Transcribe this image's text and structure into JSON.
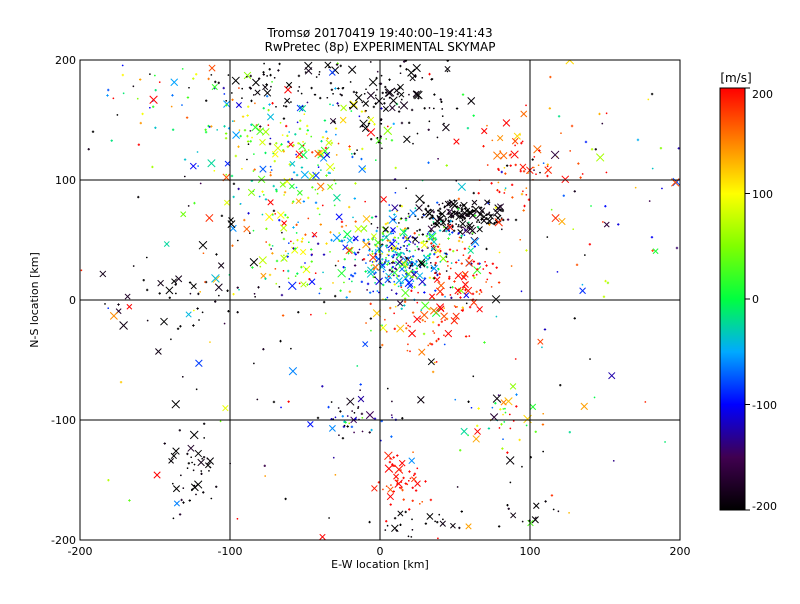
{
  "chart_data": {
    "type": "scatter",
    "title_line1": "Tromsø 20170419 19:40:00–19:41:43",
    "title_line2": "RwPretec (8p) EXPERIMENTAL SKYMAP",
    "xlabel": "E-W location [km]",
    "ylabel": "N-S location [km]",
    "xlim": [
      -200,
      200
    ],
    "ylim": [
      -200,
      200
    ],
    "x_ticks": [
      "-200",
      "-100",
      "0",
      "100",
      "200"
    ],
    "y_ticks": [
      "-200",
      "-100",
      "0",
      "100",
      "200"
    ],
    "grid": true,
    "colorbar": {
      "unit": "[m/s]",
      "range": [
        -200,
        200
      ],
      "ticks": [
        "200",
        "100",
        "0",
        "-100",
        "-200"
      ]
    },
    "clusters": [
      {
        "x": 52,
        "y": 70,
        "sx": 16,
        "sy": 7,
        "n": 180,
        "v": -200,
        "dv": 15
      },
      {
        "x": 10,
        "y": 35,
        "sx": 15,
        "sy": 15,
        "n": 260,
        "v": -70,
        "dv": 70
      },
      {
        "x": 30,
        "y": 45,
        "sx": 25,
        "sy": 25,
        "n": 160,
        "v": -20,
        "dv": 110
      },
      {
        "x": -60,
        "y": 130,
        "sx": 30,
        "sy": 25,
        "n": 200,
        "v": 20,
        "dv": 100
      },
      {
        "x": -40,
        "y": 180,
        "sx": 40,
        "sy": 12,
        "n": 110,
        "v": -200,
        "dv": 10
      },
      {
        "x": 10,
        "y": 160,
        "sx": 20,
        "sy": 20,
        "n": 70,
        "v": -200,
        "dv": 15
      },
      {
        "x": -45,
        "y": 50,
        "sx": 30,
        "sy": 30,
        "n": 140,
        "v": 60,
        "dv": 110
      },
      {
        "x": 55,
        "y": 20,
        "sx": 12,
        "sy": 15,
        "n": 70,
        "v": 200,
        "dv": 25
      },
      {
        "x": 90,
        "y": 110,
        "sx": 15,
        "sy": 25,
        "n": 70,
        "v": 180,
        "dv": 40
      },
      {
        "x": 30,
        "y": -20,
        "sx": 15,
        "sy": 15,
        "n": 60,
        "v": 180,
        "dv": 40
      },
      {
        "x": 15,
        "y": -150,
        "sx": 10,
        "sy": 12,
        "n": 50,
        "v": 200,
        "dv": 20
      },
      {
        "x": -125,
        "y": -145,
        "sx": 10,
        "sy": 15,
        "n": 45,
        "v": -200,
        "dv": 10
      },
      {
        "x": -15,
        "y": -100,
        "sx": 12,
        "sy": 10,
        "n": 45,
        "v": -130,
        "dv": 60
      },
      {
        "x": 80,
        "y": -100,
        "sx": 15,
        "sy": 12,
        "n": 35,
        "v": 30,
        "dv": 100
      },
      {
        "x": -120,
        "y": 10,
        "sx": 30,
        "sy": 40,
        "n": 60,
        "v": -200,
        "dv": 10
      },
      {
        "x": 140,
        "y": 100,
        "sx": 30,
        "sy": 50,
        "n": 50,
        "v": 0,
        "dv": 150
      },
      {
        "x": -150,
        "y": 170,
        "sx": 30,
        "sy": 20,
        "n": 40,
        "v": 50,
        "dv": 120
      },
      {
        "x": 0,
        "y": 0,
        "sx": 130,
        "sy": 130,
        "n": 200,
        "v": 0,
        "dv": 200
      },
      {
        "x": 100,
        "y": -170,
        "sx": 10,
        "sy": 20,
        "n": 20,
        "v": -200,
        "dv": 10
      },
      {
        "x": 20,
        "y": -185,
        "sx": 20,
        "sy": 8,
        "n": 25,
        "v": -200,
        "dv": 10
      }
    ]
  }
}
